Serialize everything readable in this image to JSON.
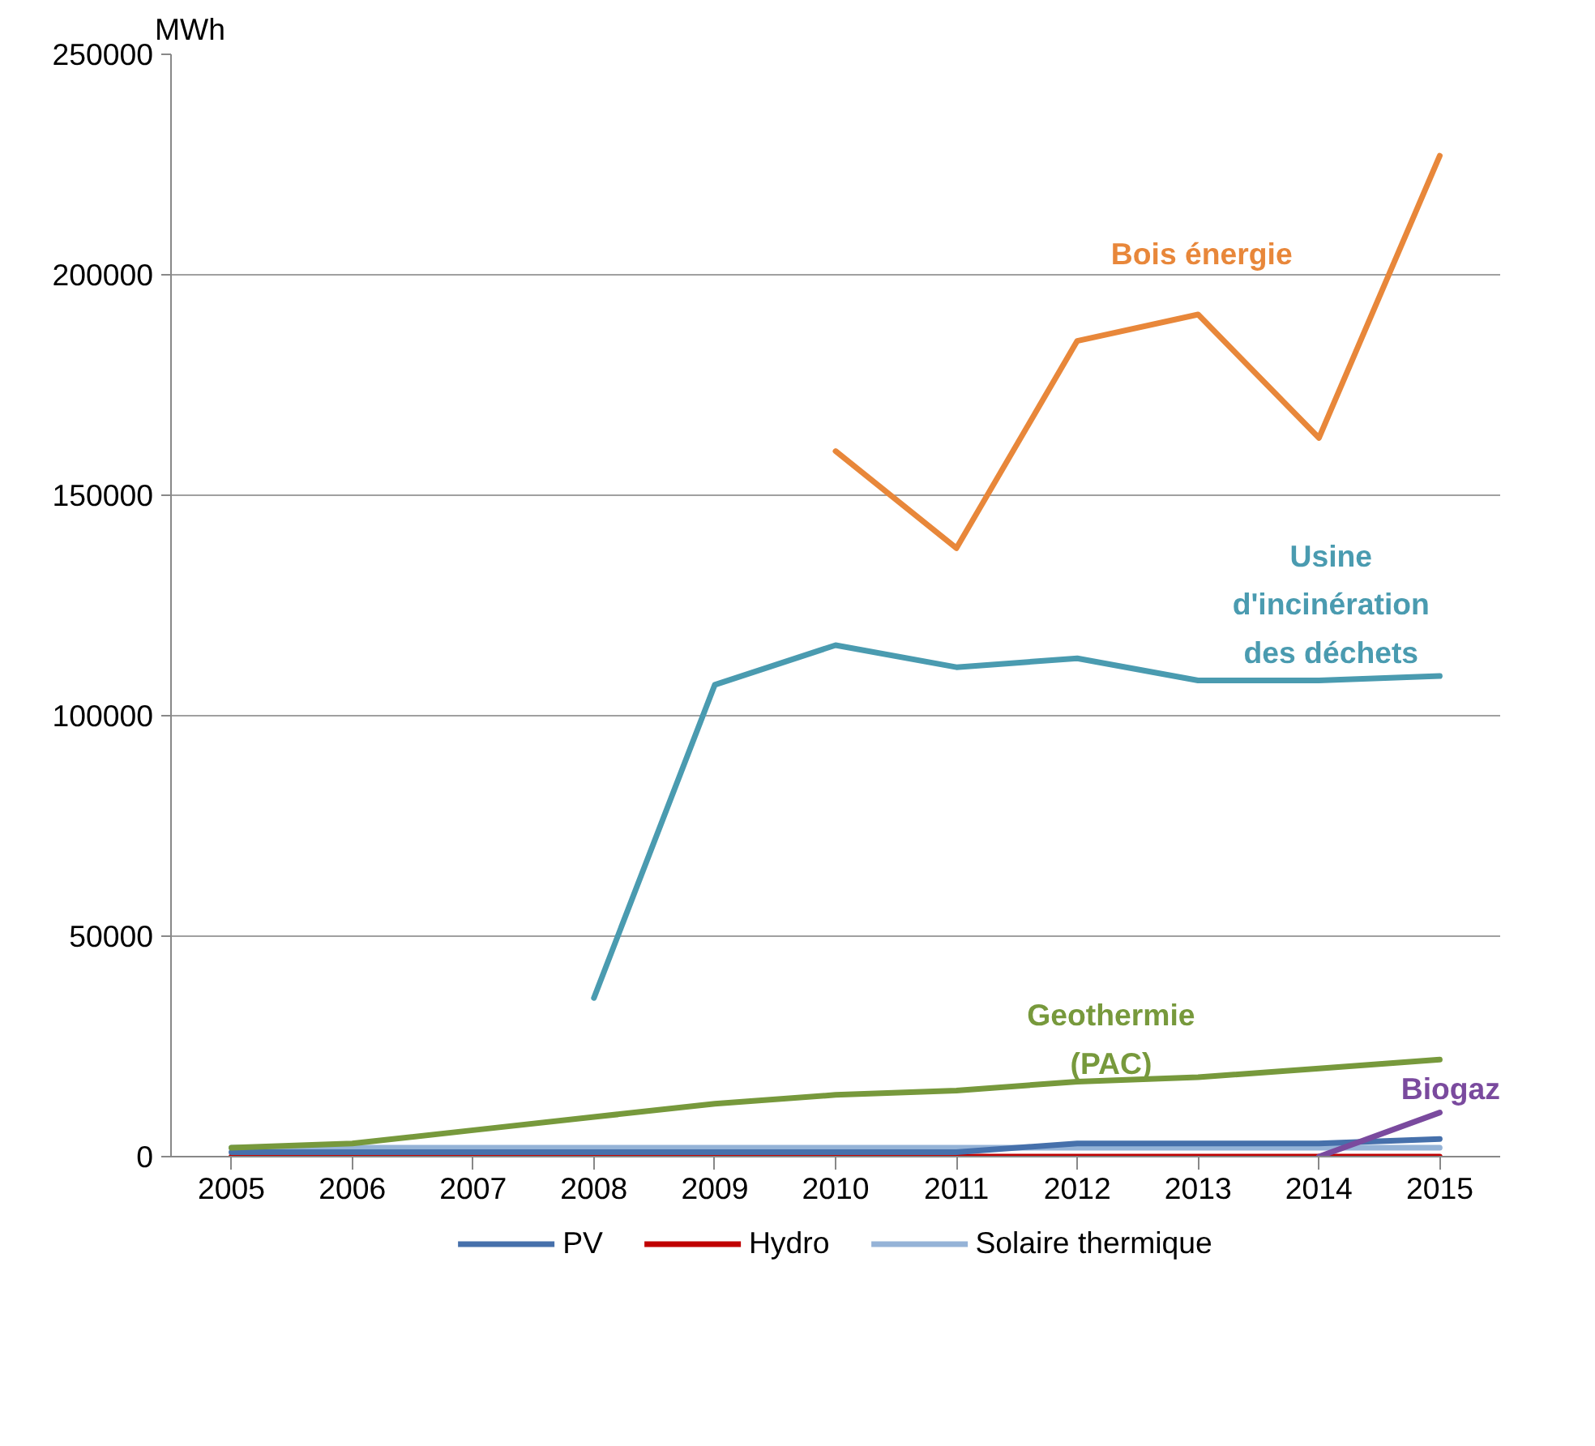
{
  "chart_data": {
    "type": "line",
    "ylabel": "MWh",
    "categories": [
      "2005",
      "2006",
      "2007",
      "2008",
      "2009",
      "2010",
      "2011",
      "2012",
      "2013",
      "2014",
      "2015"
    ],
    "ylim": [
      0,
      250000
    ],
    "yticks": [
      0,
      50000,
      100000,
      150000,
      200000,
      250000
    ],
    "grid": "y",
    "legend": "bottom",
    "line_style": "solid",
    "series": [
      {
        "name": "Bois énergie",
        "color": "#e8873a",
        "values": [
          null,
          null,
          null,
          null,
          null,
          160000,
          138000,
          185000,
          191000,
          163000,
          227000
        ]
      },
      {
        "name": "Usine d'incinération des déchets",
        "color": "#4a9bb0",
        "values": [
          null,
          null,
          null,
          36000,
          107000,
          116000,
          111000,
          113000,
          108000,
          108000,
          109000
        ]
      },
      {
        "name": "Geothermie (PAC)",
        "color": "#77993c",
        "values": [
          2000,
          3000,
          6000,
          9000,
          12000,
          14000,
          15000,
          17000,
          18000,
          20000,
          22000
        ]
      },
      {
        "name": "Biogaz",
        "color": "#7a4a9e",
        "values": [
          null,
          null,
          null,
          null,
          null,
          null,
          null,
          null,
          null,
          0,
          10000
        ]
      },
      {
        "name": "PV",
        "color": "#4670ab",
        "values": [
          1000,
          1000,
          1000,
          1000,
          1000,
          1000,
          1000,
          3000,
          3000,
          3000,
          4000
        ]
      },
      {
        "name": "Hydro",
        "color": "#c00000",
        "values": [
          0,
          0,
          0,
          0,
          0,
          0,
          0,
          0,
          0,
          0,
          0
        ]
      },
      {
        "name": "Solaire thermique",
        "color": "#95b3d7",
        "values": [
          2000,
          2000,
          2000,
          2000,
          2000,
          2000,
          2000,
          2000,
          2000,
          2000,
          2000
        ]
      }
    ]
  }
}
